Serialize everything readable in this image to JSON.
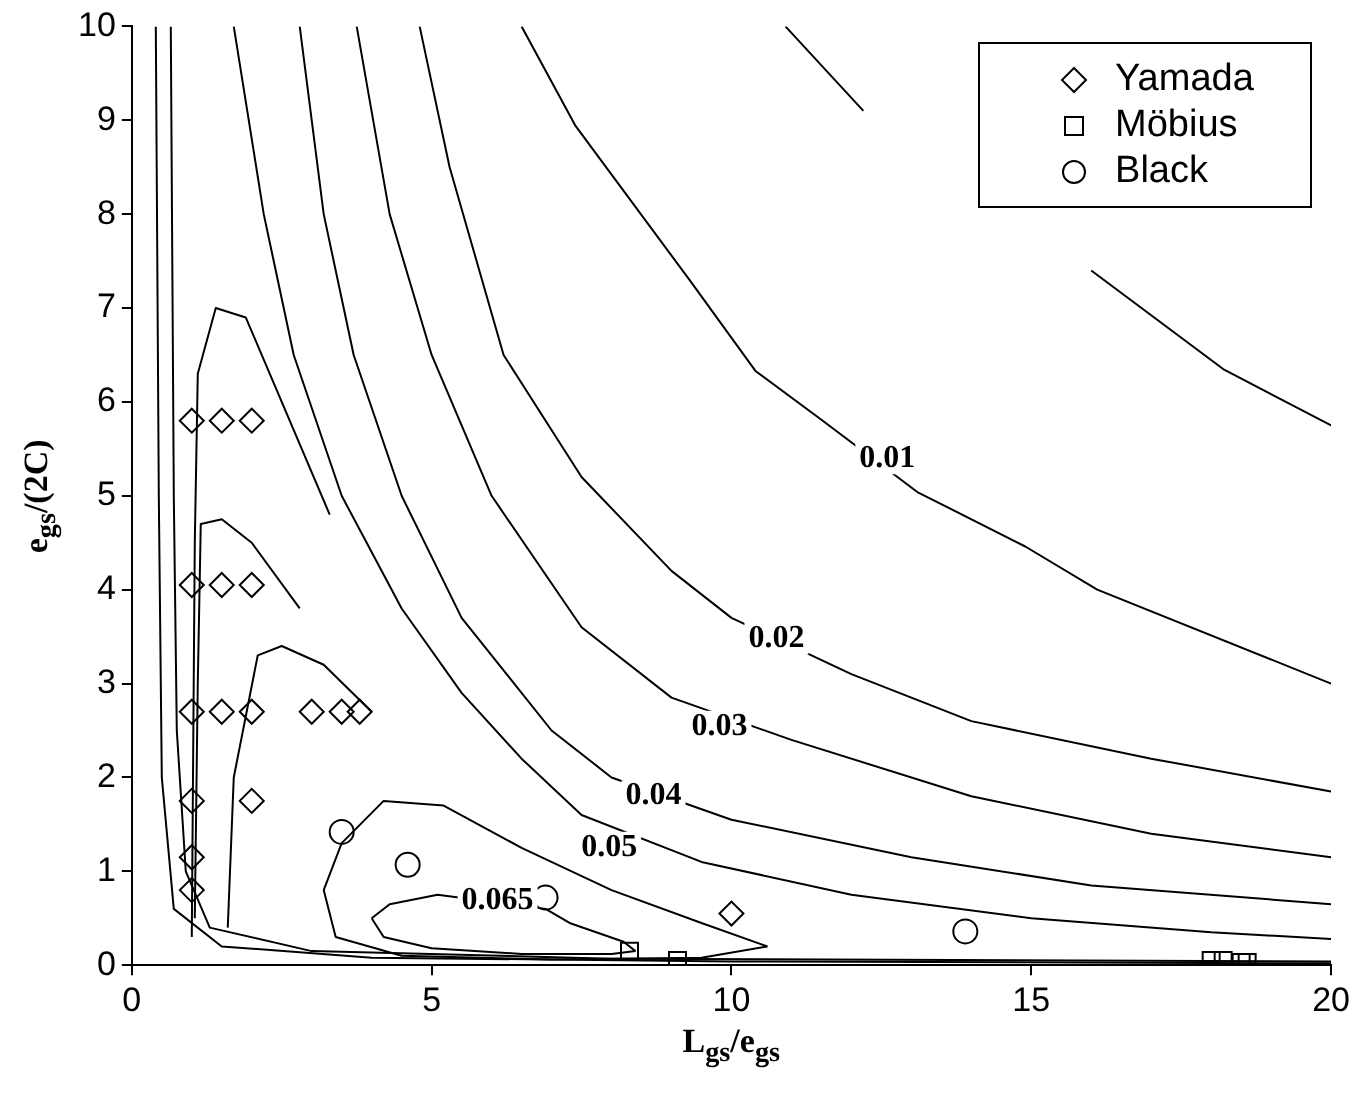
{
  "chart_data": {
    "type": "scatter",
    "xlabel": "L$_{gs}$/e$_{gs}$",
    "ylabel": "e$_{gs}$/(2C)",
    "xlim": [
      0,
      20
    ],
    "ylim": [
      0,
      10
    ],
    "xticks": [
      0,
      5,
      10,
      15,
      20
    ],
    "yticks": [
      0,
      1,
      2,
      3,
      4,
      5,
      6,
      7,
      8,
      9,
      10
    ],
    "grid": false,
    "legend": "top right",
    "series": [
      {
        "name": "Yamada",
        "marker": "diamond",
        "color": "#000000",
        "x": [
          1,
          1.5,
          2,
          1,
          1.5,
          2,
          1,
          1.5,
          2,
          1,
          2,
          1,
          1,
          3,
          3.5,
          3.8,
          10
        ],
        "values": [
          5.8,
          5.8,
          5.8,
          4.05,
          4.05,
          4.05,
          2.7,
          2.7,
          2.7,
          1.75,
          1.75,
          1.15,
          0.8,
          2.7,
          2.7,
          2.7,
          0.55
        ]
      },
      {
        "name": "Möbius",
        "marker": "square",
        "color": "#000000",
        "x": [
          8.3,
          9.1,
          18,
          18.2,
          18.5,
          18.6
        ],
        "values": [
          0.15,
          0.05,
          0.05,
          0.05,
          0.03,
          0.03
        ]
      },
      {
        "name": "Black",
        "marker": "circle",
        "color": "#000000",
        "x": [
          3.5,
          4.6,
          6.9,
          13.9
        ],
        "values": [
          1.42,
          1.07,
          0.72,
          0.36
        ]
      },
      {
        "type": "line",
        "marker": "none",
        "color": "#000000",
        "x": [
          10.9,
          12.2,
          14,
          16.0,
          18.2,
          20
        ],
        "values": [
          10,
          9.1,
          null,
          7.4,
          6.35,
          5.75
        ]
      },
      {
        "type": "line",
        "marker": "none",
        "color": "#000000",
        "x": [
          6.5,
          7.4,
          9.3,
          10.4,
          11.5,
          13.1,
          14.9,
          16.1,
          20
        ],
        "values": [
          10,
          8.94,
          7.3,
          6.33,
          5.81,
          5.04,
          4.46,
          4.0,
          3.0
        ]
      },
      {
        "type": "line",
        "marker": "none",
        "color": "#000000",
        "x": [
          4.8,
          5.3,
          6.2,
          7.5,
          9,
          10,
          12,
          14,
          17,
          20
        ],
        "values": [
          10,
          8.5,
          6.5,
          5.2,
          4.2,
          3.7,
          3.1,
          2.6,
          2.2,
          1.85
        ]
      },
      {
        "type": "line",
        "marker": "none",
        "color": "#000000",
        "x": [
          3.75,
          4.3,
          5,
          6,
          7.5,
          9,
          11,
          14,
          17,
          20
        ],
        "values": [
          10,
          8,
          6.5,
          5,
          3.6,
          2.85,
          2.4,
          1.8,
          1.4,
          1.15
        ]
      },
      {
        "type": "line",
        "marker": "none",
        "color": "#000000",
        "x": [
          2.8,
          3.2,
          3.7,
          4.5,
          5.5,
          7,
          8,
          10,
          13,
          16,
          20
        ],
        "values": [
          10,
          8,
          6.5,
          5,
          3.7,
          2.5,
          2.0,
          1.55,
          1.15,
          0.85,
          0.65
        ]
      },
      {
        "type": "line",
        "marker": "none",
        "color": "#000000",
        "x": [
          1.7,
          2.2,
          2.7,
          3.5,
          4.5,
          5.5,
          6.5,
          7.5,
          9.5,
          12,
          15,
          18,
          20
        ],
        "values": [
          10,
          8,
          6.5,
          5,
          3.8,
          2.9,
          2.2,
          1.6,
          1.1,
          0.75,
          0.5,
          0.35,
          0.28
        ]
      },
      {
        "type": "line",
        "marker": "none",
        "color": "#000000",
        "x": [
          3.2,
          3.5,
          4.2,
          5.2,
          6.5,
          8,
          9.5,
          10.6
        ],
        "values": [
          0.8,
          1.3,
          1.75,
          1.7,
          1.25,
          0.8,
          0.45,
          0.2
        ]
      },
      {
        "type": "line",
        "marker": "none",
        "color": "#000000",
        "x": [
          3.2,
          3.4,
          4.5,
          7,
          9.5,
          10.6
        ],
        "values": [
          0.8,
          0.3,
          0.1,
          0.06,
          0.08,
          0.2
        ]
      },
      {
        "type": "line",
        "marker": "none",
        "color": "#000000",
        "x": [
          4.0,
          4.3,
          5.1,
          6.9,
          7.3,
          8.2,
          8.4
        ],
        "values": [
          0.5,
          0.65,
          0.75,
          0.6,
          0.45,
          0.25,
          0.15
        ]
      },
      {
        "type": "line",
        "marker": "none",
        "color": "#000000",
        "x": [
          4.0,
          4.2,
          5,
          6.5,
          8,
          8.4
        ],
        "values": [
          0.5,
          0.3,
          0.18,
          0.12,
          0.12,
          0.15
        ]
      },
      {
        "type": "line",
        "marker": "none",
        "color": "#000000",
        "x": [
          0.4,
          0.45,
          0.5,
          0.7,
          1.5,
          4,
          10,
          20
        ],
        "values": [
          10,
          5,
          2,
          0.6,
          0.2,
          0.08,
          0.04,
          0.02
        ]
      },
      {
        "type": "line",
        "marker": "none",
        "color": "#000000",
        "x": [
          0.65,
          0.7,
          0.75,
          0.9,
          1.3,
          3,
          8,
          20
        ],
        "values": [
          10,
          5,
          2.5,
          1.0,
          0.4,
          0.15,
          0.07,
          0.04
        ]
      },
      {
        "type": "line",
        "marker": "none",
        "color": "#000000",
        "x": [
          1.0,
          1.05,
          1.1,
          1.4,
          1.9,
          2.5,
          3.3
        ],
        "values": [
          0.3,
          4.5,
          6.3,
          7.0,
          6.9,
          6.0,
          4.8
        ]
      },
      {
        "type": "line",
        "marker": "none",
        "color": "#000000",
        "x": [
          1.05,
          1.1,
          1.15,
          1.5,
          2.0,
          2.8
        ],
        "values": [
          0.5,
          3.0,
          4.7,
          4.75,
          4.5,
          3.8
        ]
      },
      {
        "type": "line",
        "marker": "none",
        "color": "#000000",
        "x": [
          1.6,
          1.7,
          2.1,
          2.5,
          3.2,
          4.0
        ],
        "values": [
          0.4,
          2,
          3.3,
          3.4,
          3.2,
          2.7
        ]
      }
    ],
    "annotations": [
      {
        "text": "0.01",
        "x": 12.6,
        "y": 5.4
      },
      {
        "text": "0.02",
        "x": 10.75,
        "y": 3.48
      },
      {
        "text": "0.03",
        "x": 9.8,
        "y": 2.54
      },
      {
        "text": "0.04",
        "x": 8.7,
        "y": 1.8
      },
      {
        "text": "0.05",
        "x": 7.96,
        "y": 1.25
      },
      {
        "text": "0.065",
        "x": 6.1,
        "y": 0.69
      }
    ]
  }
}
